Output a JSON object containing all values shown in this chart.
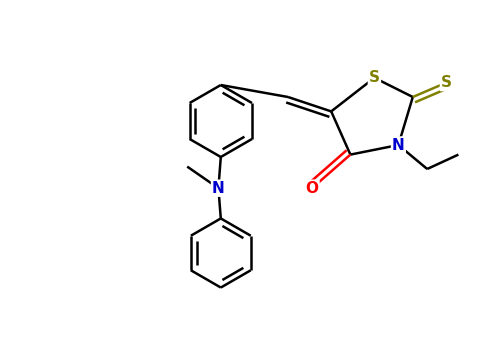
{
  "background": "#ffffff",
  "bond_color": "#000000",
  "bond_width": 1.8,
  "S_color": "#808000",
  "N_color": "#0000cc",
  "O_color": "#ff0000",
  "figsize": [
    4.8,
    3.62
  ],
  "dpi": 100,
  "xlim": [
    0.0,
    10.0
  ],
  "ylim": [
    0.0,
    7.5
  ]
}
